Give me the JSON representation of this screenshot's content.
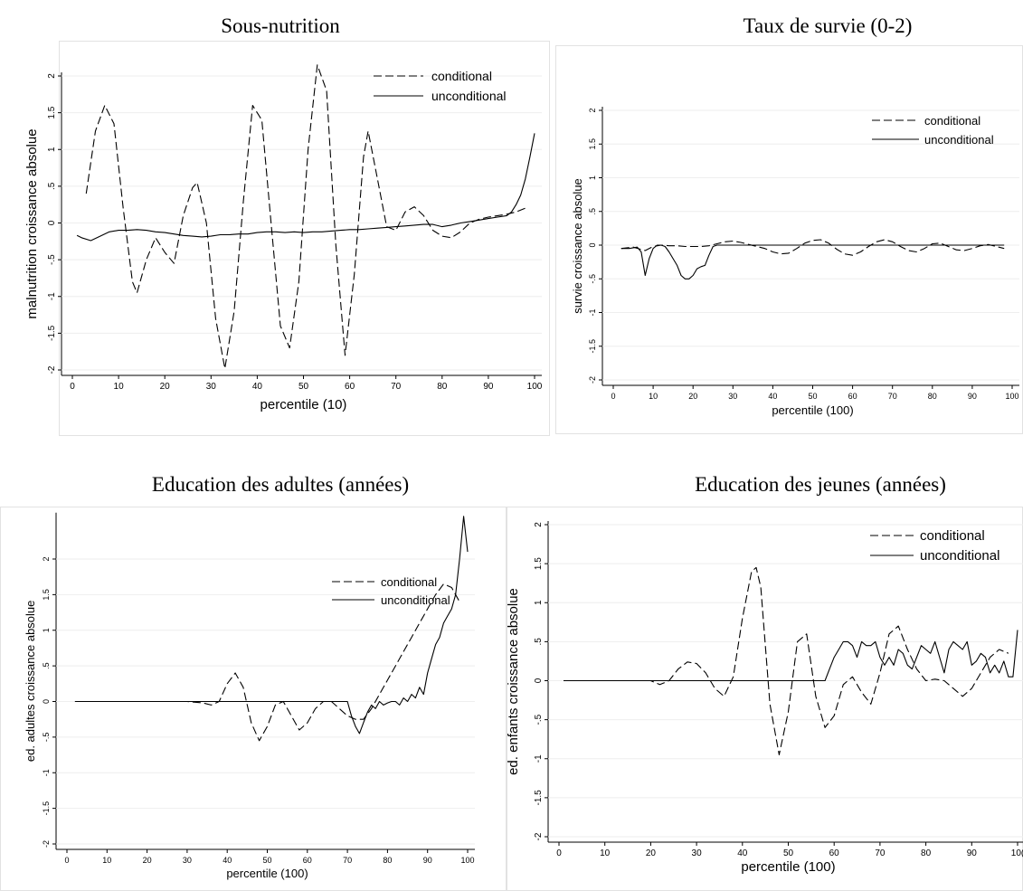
{
  "chart_data": [
    {
      "type": "line",
      "title": "Sous-nutrition",
      "xlabel": "percentile (10)",
      "ylabel": "malnutrition croissance absolue",
      "xlim": [
        0,
        100
      ],
      "ylim": [
        -2,
        2
      ],
      "xticks": [
        "0",
        "10",
        "20",
        "30",
        "40",
        "50",
        "60",
        "70",
        "80",
        "90",
        "100"
      ],
      "yticks": [
        "-2",
        "-1.5",
        "-1",
        "-.5",
        "0",
        ".5",
        "1",
        "1.5",
        "2"
      ],
      "legend_position": "top-right",
      "series": [
        {
          "name": "conditional",
          "style": "dashed",
          "x": [
            3,
            5,
            7,
            9,
            11,
            13,
            14,
            16,
            18,
            20,
            22,
            24,
            26,
            27,
            29,
            31,
            33,
            35,
            37,
            39,
            41,
            43,
            45,
            47,
            49,
            51,
            53,
            55,
            57,
            59,
            61,
            63,
            64,
            66,
            68,
            70,
            72,
            74,
            76,
            78,
            80,
            82,
            84,
            86,
            88,
            90,
            92,
            94,
            96,
            98
          ],
          "y": [
            0.4,
            1.25,
            1.6,
            1.35,
            0.2,
            -0.8,
            -0.95,
            -0.5,
            -0.2,
            -0.4,
            -0.55,
            0.1,
            0.48,
            0.55,
            0,
            -1.3,
            -1.98,
            -1.2,
            0.3,
            1.6,
            1.4,
            0,
            -1.4,
            -1.7,
            -0.8,
            1.0,
            2.15,
            1.8,
            -0.3,
            -1.8,
            -0.7,
            0.9,
            1.25,
            0.6,
            -0.05,
            -0.1,
            0.15,
            0.22,
            0.1,
            -0.1,
            -0.18,
            -0.2,
            -0.12,
            0,
            0.05,
            0.08,
            0.1,
            0.12,
            0.15,
            0.2
          ]
        },
        {
          "name": "unconditional",
          "style": "solid",
          "x": [
            1,
            2,
            4,
            6,
            8,
            10,
            12,
            14,
            16,
            18,
            20,
            22,
            24,
            26,
            28,
            30,
            32,
            34,
            36,
            38,
            40,
            42,
            44,
            46,
            48,
            50,
            52,
            54,
            56,
            58,
            60,
            62,
            64,
            66,
            68,
            70,
            72,
            74,
            76,
            78,
            80,
            82,
            84,
            86,
            88,
            90,
            92,
            94,
            95,
            96,
            97,
            98,
            99,
            100
          ],
          "y": [
            -0.17,
            -0.2,
            -0.24,
            -0.18,
            -0.12,
            -0.1,
            -0.1,
            -0.09,
            -0.1,
            -0.12,
            -0.13,
            -0.15,
            -0.17,
            -0.18,
            -0.19,
            -0.18,
            -0.16,
            -0.16,
            -0.15,
            -0.15,
            -0.13,
            -0.12,
            -0.12,
            -0.13,
            -0.12,
            -0.13,
            -0.12,
            -0.12,
            -0.11,
            -0.1,
            -0.09,
            -0.09,
            -0.08,
            -0.07,
            -0.06,
            -0.05,
            -0.04,
            -0.03,
            -0.02,
            -0.02,
            -0.05,
            -0.03,
            0,
            0.02,
            0.04,
            0.06,
            0.08,
            0.1,
            0.15,
            0.25,
            0.38,
            0.6,
            0.9,
            1.22
          ]
        }
      ]
    },
    {
      "type": "line",
      "title": "Taux de survie (0-2)",
      "xlabel": "percentile (100)",
      "ylabel": "survie croissance absolue",
      "xlim": [
        0,
        100
      ],
      "ylim": [
        -2,
        2
      ],
      "xticks": [
        "0",
        "10",
        "20",
        "30",
        "40",
        "50",
        "60",
        "70",
        "80",
        "90",
        "100"
      ],
      "yticks": [
        "-2",
        "-1.5",
        "-1",
        "-.5",
        "0",
        ".5",
        "1",
        "1.5",
        "2"
      ],
      "legend_position": "top-right",
      "series": [
        {
          "name": "conditional",
          "style": "dashed",
          "x": [
            2,
            5,
            8,
            10,
            12,
            14,
            16,
            18,
            20,
            22,
            24,
            26,
            28,
            30,
            32,
            34,
            36,
            38,
            40,
            42,
            44,
            46,
            48,
            50,
            52,
            54,
            56,
            58,
            60,
            62,
            64,
            66,
            68,
            70,
            72,
            74,
            76,
            78,
            80,
            82,
            84,
            86,
            88,
            90,
            92,
            94,
            96,
            98
          ],
          "y": [
            -0.05,
            -0.03,
            -0.08,
            -0.02,
            0,
            -0.01,
            -0.01,
            -0.02,
            -0.02,
            -0.02,
            -0.01,
            0.02,
            0.05,
            0.06,
            0.04,
            0.01,
            -0.02,
            -0.05,
            -0.1,
            -0.13,
            -0.12,
            -0.05,
            0.03,
            0.07,
            0.08,
            0.03,
            -0.06,
            -0.13,
            -0.15,
            -0.1,
            -0.02,
            0.05,
            0.08,
            0.05,
            -0.02,
            -0.08,
            -0.1,
            -0.05,
            0.02,
            0.03,
            -0.02,
            -0.07,
            -0.08,
            -0.05,
            -0.01,
            0.01,
            -0.02,
            -0.05
          ]
        },
        {
          "name": "unconditional",
          "style": "solid",
          "x": [
            2,
            4,
            6,
            7,
            8,
            9,
            10,
            11,
            12,
            13,
            14,
            15,
            16,
            17,
            18,
            19,
            20,
            21,
            22,
            23,
            24,
            25,
            26,
            28,
            30,
            35,
            40,
            50,
            60,
            70,
            80,
            90,
            98
          ],
          "y": [
            -0.05,
            -0.05,
            -0.03,
            -0.1,
            -0.45,
            -0.2,
            -0.05,
            0,
            0,
            -0.02,
            -0.1,
            -0.2,
            -0.3,
            -0.45,
            -0.5,
            -0.5,
            -0.45,
            -0.35,
            -0.32,
            -0.3,
            -0.15,
            -0.02,
            0,
            0,
            0,
            0,
            0,
            0,
            0,
            0,
            0,
            0,
            0
          ]
        }
      ]
    },
    {
      "type": "line",
      "title": "Education des adultes (années)",
      "xlabel": "percentile (100)",
      "ylabel": "ed. adultes croissance absolue",
      "xlim": [
        0,
        100
      ],
      "ylim": [
        -2,
        2.6
      ],
      "xticks": [
        "0",
        "10",
        "20",
        "30",
        "40",
        "50",
        "60",
        "70",
        "80",
        "90",
        "100"
      ],
      "yticks": [
        "-2",
        "-1.5",
        "-1",
        "-.5",
        "0",
        ".5",
        "1",
        "1.5",
        "2"
      ],
      "legend_position": "top-right",
      "series": [
        {
          "name": "conditional",
          "style": "dashed",
          "x": [
            2,
            10,
            20,
            30,
            34,
            36,
            38,
            40,
            42,
            44,
            46,
            48,
            50,
            52,
            54,
            56,
            58,
            60,
            62,
            64,
            66,
            68,
            70,
            72,
            74,
            76,
            78,
            80,
            82,
            84,
            86,
            88,
            90,
            92,
            94,
            96,
            98
          ],
          "y": [
            0,
            0,
            0,
            0,
            -0.02,
            -0.05,
            0,
            0.25,
            0.4,
            0.2,
            -0.3,
            -0.55,
            -0.35,
            -0.05,
            0,
            -0.2,
            -0.4,
            -0.3,
            -0.1,
            0,
            0,
            -0.1,
            -0.2,
            -0.25,
            -0.25,
            -0.1,
            0.1,
            0.3,
            0.5,
            0.7,
            0.9,
            1.1,
            1.3,
            1.5,
            1.65,
            1.6,
            1.4
          ]
        },
        {
          "name": "unconditional",
          "style": "solid",
          "x": [
            2,
            10,
            20,
            30,
            40,
            50,
            60,
            65,
            70,
            71,
            72,
            73,
            74,
            75,
            76,
            77,
            78,
            79,
            80,
            81,
            82,
            83,
            84,
            85,
            86,
            87,
            88,
            89,
            90,
            91,
            92,
            93,
            94,
            95,
            96,
            97,
            98,
            99,
            100
          ],
          "y": [
            0,
            0,
            0,
            0,
            0,
            0,
            0,
            0,
            0,
            -0.2,
            -0.35,
            -0.45,
            -0.3,
            -0.15,
            -0.05,
            -0.1,
            0,
            -0.05,
            -0.02,
            0,
            0,
            -0.05,
            0.05,
            0,
            0.1,
            0.05,
            0.2,
            0.1,
            0.4,
            0.6,
            0.8,
            0.9,
            1.1,
            1.2,
            1.3,
            1.5,
            2.0,
            2.6,
            2.1
          ]
        }
      ]
    },
    {
      "type": "line",
      "title": "Education des jeunes (années)",
      "xlabel": "percentile (100)",
      "ylabel": "ed. enfants croissance absolue",
      "xlim": [
        0,
        100
      ],
      "ylim": [
        -2,
        2
      ],
      "xticks": [
        "0",
        "10",
        "20",
        "30",
        "40",
        "50",
        "60",
        "70",
        "80",
        "90",
        "10("
      ],
      "yticks": [
        "-2",
        "-1.5",
        "-1",
        "-.5",
        "0",
        ".5",
        "1",
        "1.5",
        "2"
      ],
      "legend_position": "top-right",
      "series": [
        {
          "name": "conditional",
          "style": "dashed",
          "x": [
            1,
            10,
            20,
            22,
            24,
            26,
            28,
            30,
            32,
            34,
            36,
            38,
            40,
            42,
            43,
            44,
            46,
            48,
            50,
            52,
            54,
            56,
            58,
            60,
            62,
            64,
            66,
            68,
            70,
            72,
            74,
            76,
            78,
            80,
            82,
            84,
            86,
            88,
            90,
            92,
            94,
            96,
            98
          ],
          "y": [
            0,
            0,
            0,
            -0.05,
            0,
            0.15,
            0.24,
            0.22,
            0.1,
            -0.1,
            -0.2,
            0.05,
            0.8,
            1.4,
            1.45,
            1.2,
            -0.3,
            -0.95,
            -0.4,
            0.5,
            0.6,
            -0.2,
            -0.6,
            -0.45,
            -0.05,
            0.05,
            -0.15,
            -0.3,
            0.1,
            0.6,
            0.7,
            0.4,
            0.15,
            0,
            0.02,
            0,
            -0.1,
            -0.2,
            -0.1,
            0.1,
            0.3,
            0.4,
            0.35
          ]
        },
        {
          "name": "unconditional",
          "style": "solid",
          "x": [
            1,
            10,
            20,
            30,
            40,
            50,
            58,
            59,
            60,
            61,
            62,
            63,
            64,
            65,
            66,
            67,
            68,
            69,
            70,
            71,
            72,
            73,
            74,
            75,
            76,
            77,
            78,
            79,
            80,
            81,
            82,
            83,
            84,
            85,
            86,
            87,
            88,
            89,
            90,
            91,
            92,
            93,
            94,
            95,
            96,
            97,
            98,
            99,
            100
          ],
          "y": [
            0,
            0,
            0,
            0,
            0,
            0,
            0,
            0.15,
            0.3,
            0.4,
            0.5,
            0.5,
            0.45,
            0.3,
            0.5,
            0.45,
            0.45,
            0.5,
            0.3,
            0.2,
            0.3,
            0.2,
            0.4,
            0.35,
            0.2,
            0.15,
            0.3,
            0.45,
            0.4,
            0.35,
            0.5,
            0.3,
            0.1,
            0.4,
            0.5,
            0.45,
            0.4,
            0.5,
            0.2,
            0.25,
            0.35,
            0.3,
            0.1,
            0.2,
            0.1,
            0.25,
            0.05,
            0.05,
            0.65
          ]
        }
      ]
    }
  ]
}
